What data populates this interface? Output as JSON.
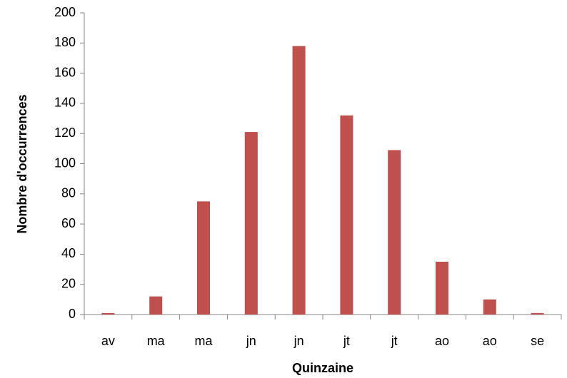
{
  "chart_data": {
    "type": "bar",
    "x_label": "Quinzaine",
    "y_label": "Nombre d'occurrences",
    "categories": [
      "av",
      "ma",
      "ma",
      "jn",
      "jn",
      "jt",
      "jt",
      "ao",
      "ao",
      "se"
    ],
    "values": [
      1,
      12,
      75,
      121,
      178,
      132,
      109,
      35,
      10,
      1
    ],
    "color": "#c0504d",
    "ylim": [
      0,
      200
    ],
    "yticks": [
      0,
      20,
      40,
      60,
      80,
      100,
      120,
      140,
      160,
      180,
      200
    ],
    "grid": false
  }
}
